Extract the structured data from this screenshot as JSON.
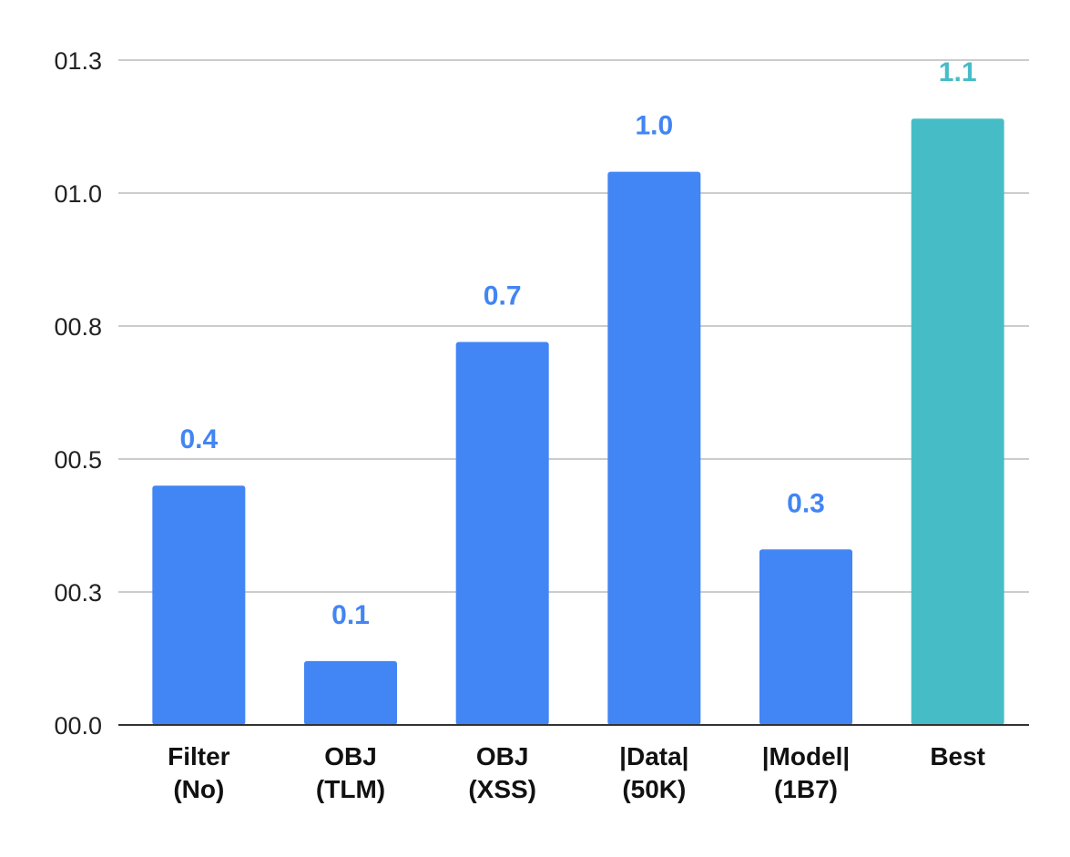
{
  "chart_data": {
    "type": "bar",
    "title": "",
    "xlabel": "",
    "ylabel": "",
    "categories": [
      [
        "Filter",
        "(No)"
      ],
      [
        "OBJ",
        "(TLM)"
      ],
      [
        "OBJ",
        "(XSS)"
      ],
      [
        "|Data|",
        "(50K)"
      ],
      [
        "|Model|",
        "(1B7)"
      ],
      [
        "Best"
      ]
    ],
    "values": [
      0.45,
      0.12,
      0.72,
      1.04,
      0.33,
      1.14
    ],
    "value_labels": [
      "0.4",
      "0.1",
      "0.7",
      "1.0",
      "0.3",
      "1.1"
    ],
    "bar_colors": [
      "#4285F4",
      "#4285F4",
      "#4285F4",
      "#4285F4",
      "#4285F4",
      "#46BDC6"
    ],
    "y_ticks": [
      {
        "value": 0.0,
        "label": "00.0"
      },
      {
        "value": 0.25,
        "label": "00.3"
      },
      {
        "value": 0.5,
        "label": "00.5"
      },
      {
        "value": 0.75,
        "label": "00.8"
      },
      {
        "value": 1.0,
        "label": "01.0"
      },
      {
        "value": 1.25,
        "label": "01.3"
      }
    ],
    "ylim": [
      0,
      1.25
    ],
    "grid": true,
    "legend": "none"
  }
}
